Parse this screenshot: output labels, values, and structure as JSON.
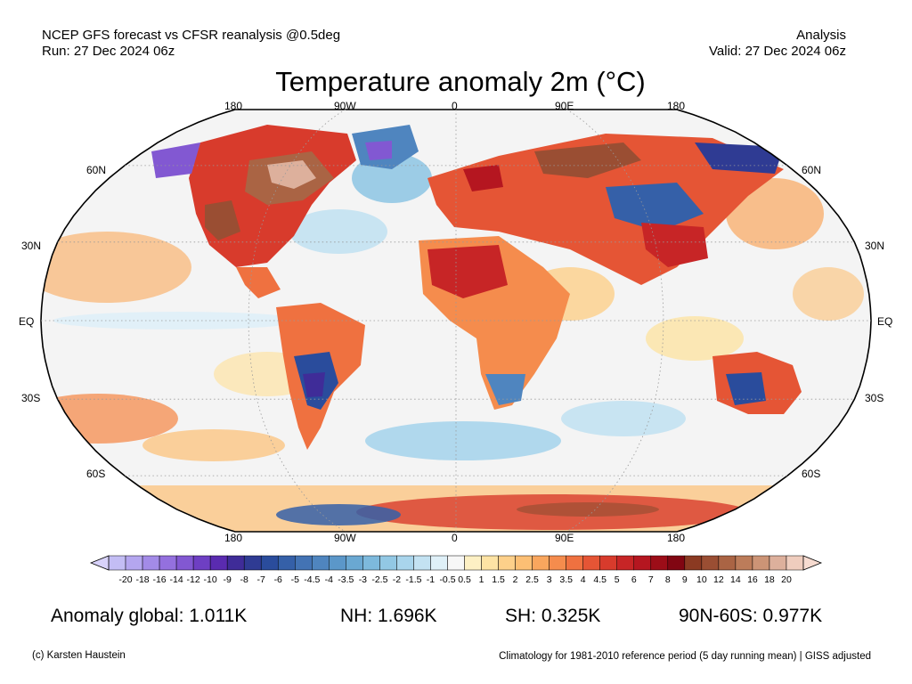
{
  "header": {
    "left_line1": "NCEP GFS forecast vs CFSR reanalysis @0.5deg",
    "left_line2": "Run: 27 Dec 2024 06z",
    "right_line1": "Analysis",
    "right_line2": "Valid: 27 Dec 2024 06z",
    "title": "Temperature anomaly 2m (°C)"
  },
  "map": {
    "lon_labels_top": [
      "180",
      "90W",
      "0",
      "90E",
      "180"
    ],
    "lon_labels_bottom": [
      "180",
      "90W",
      "0",
      "90E",
      "180"
    ],
    "lat_labels_left": [
      "60N",
      "30N",
      "EQ",
      "30S",
      "60S"
    ],
    "lat_labels_right": [
      "60N",
      "30N",
      "EQ",
      "30S",
      "60S"
    ],
    "ocean_color": "#f4f4f4",
    "projection": "robinson"
  },
  "colorbar": {
    "ticks": [
      "-20",
      "-18",
      "-16",
      "-14",
      "-12",
      "-10",
      "-9",
      "-8",
      "-7",
      "-6",
      "-5",
      "-4.5",
      "-4",
      "-3.5",
      "-3",
      "-2.5",
      "-2",
      "-1.5",
      "-1",
      "-0.5",
      "0.5",
      "1",
      "1.5",
      "2",
      "2.5",
      "3",
      "3.5",
      "4",
      "4.5",
      "5",
      "6",
      "7",
      "8",
      "9",
      "10",
      "12",
      "14",
      "16",
      "18",
      "20"
    ],
    "colors": [
      "#c3bdf4",
      "#b4a6ef",
      "#a38be7",
      "#9470de",
      "#8258d2",
      "#6e3fc3",
      "#5a2bb0",
      "#3f2c98",
      "#2f3b93",
      "#2a4c9c",
      "#3560a8",
      "#4373b4",
      "#4f85bf",
      "#5b97c9",
      "#6aa8d2",
      "#7db9dc",
      "#92c8e4",
      "#a9d5ec",
      "#c3e2f2",
      "#dff0f8",
      "#f7f7f7",
      "#fdf0c4",
      "#fde3a4",
      "#fdd08a",
      "#fcbf74",
      "#f9a65e",
      "#f58c4d",
      "#ef7140",
      "#e55535",
      "#d83b2c",
      "#c72526",
      "#b51620",
      "#9c0d18",
      "#810612",
      "#8b3a22",
      "#9a4e33",
      "#aa6444",
      "#bc7c5a",
      "#cc9476",
      "#ddb09c",
      "#efcdbe"
    ],
    "under_color": "#d8d2fa",
    "over_color": "#f6dbd0"
  },
  "stats": {
    "global": "Anomaly global: 1.011K",
    "nh": "NH: 1.696K",
    "sh": "SH: 0.325K",
    "arctic": "90N-60S: 0.977K"
  },
  "footer": {
    "copyright": "(c) Karsten Haustein",
    "note": "Climatology for 1981-2010 reference period (5 day running mean) | GISS adjusted"
  }
}
